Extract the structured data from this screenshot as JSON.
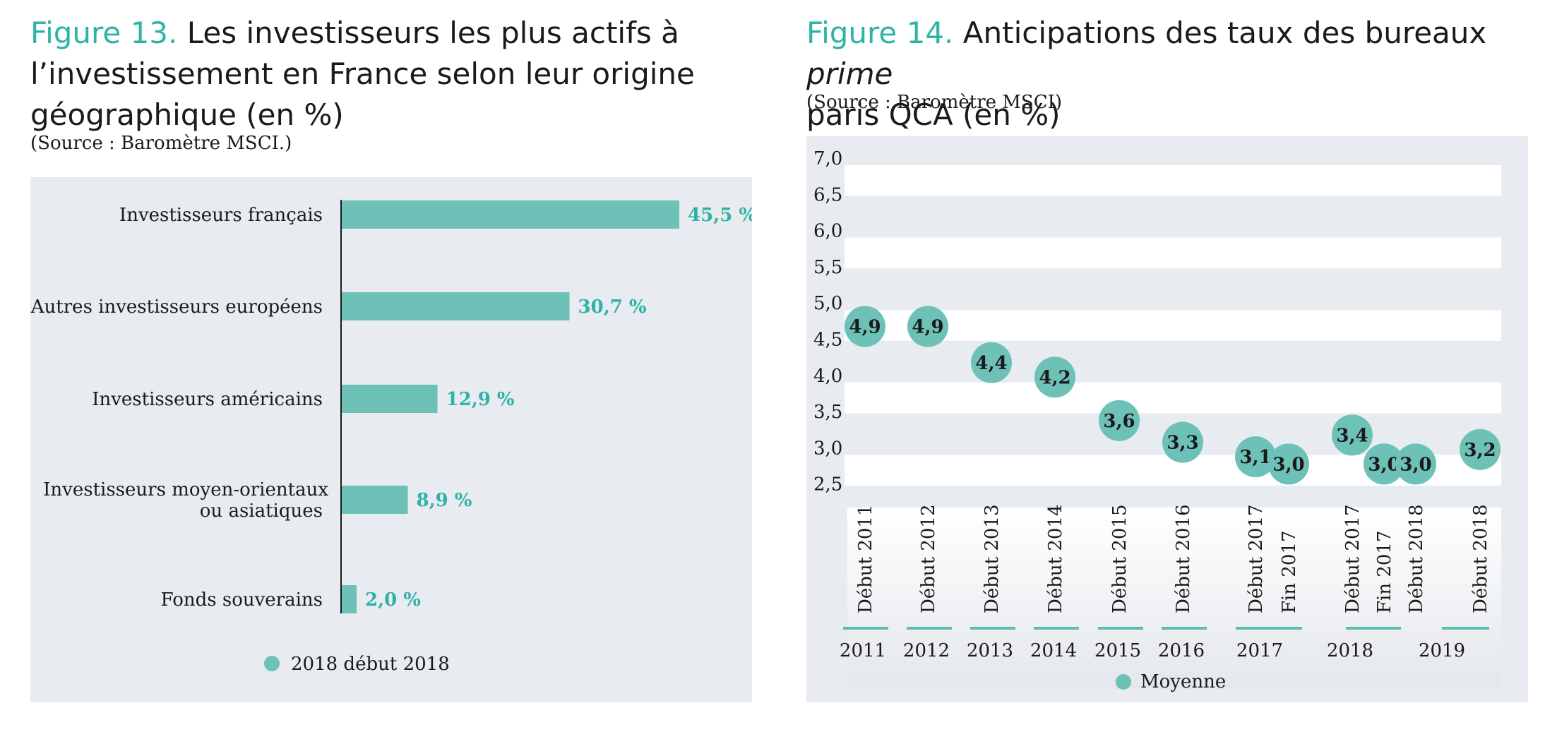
{
  "colors": {
    "accent": "#2fb3a6",
    "bar": "#6dc1b6",
    "panel": "#e8ebef",
    "text": "#1a1a1a"
  },
  "figure13": {
    "label": "Figure 13.",
    "title_line1": "Les investisseurs les plus actifs à",
    "title_line2": "l’investissement en France selon leur origine",
    "title_line3": "géographique (en %)",
    "source": "(Source : Baromètre MSCI.)",
    "legend": "2018 début 2018"
  },
  "figure14": {
    "label": "Figure 14.",
    "title_part1": "Anticipations des taux des bureaux ",
    "title_italic": "prime",
    "title_line2": "paris QCA (en %)",
    "source": "(Source : Baromètre MSCI)",
    "legend": "Moyenne"
  },
  "chart_data": [
    {
      "type": "bar",
      "orientation": "horizontal",
      "categories": [
        [
          "Investisseurs français"
        ],
        [
          "Autres investisseurs européens"
        ],
        [
          "Investisseurs américains"
        ],
        [
          "Investisseurs moyen-orientaux",
          "ou asiatiques"
        ],
        [
          "Fonds souverains"
        ]
      ],
      "values": [
        45.5,
        30.7,
        12.9,
        8.9,
        2.0
      ],
      "value_labels": [
        "45,5 %",
        "30,7 %",
        "12,9 %",
        "8,9 %",
        "2,0 %"
      ],
      "series": [
        {
          "name": "2018 début 2018",
          "values": [
            45.5,
            30.7,
            12.9,
            8.9,
            2.0
          ]
        }
      ],
      "xlim": [
        0,
        50
      ],
      "legend_position": "bottom"
    },
    {
      "type": "scatter",
      "y_ticks": [
        "7,0",
        "6,5",
        "6,0",
        "5,5",
        "5,0",
        "4,5",
        "4,0",
        "3,5",
        "3,0",
        "2,5"
      ],
      "ylim": [
        2.5,
        7.0
      ],
      "points": [
        {
          "label": "Début 2011",
          "year": "2011",
          "value": 4.9,
          "value_label": "4,9"
        },
        {
          "label": "Début 2012",
          "year": "2012",
          "value": 4.9,
          "value_label": "4,9"
        },
        {
          "label": "Début 2013",
          "year": "2013",
          "value": 4.4,
          "value_label": "4,4"
        },
        {
          "label": "Début 2014",
          "year": "2014",
          "value": 4.2,
          "value_label": "4,2"
        },
        {
          "label": "Début 2015",
          "year": "2015",
          "value": 3.6,
          "value_label": "3,6"
        },
        {
          "label": "Début 2016",
          "year": "2016",
          "value": 3.3,
          "value_label": "3,3"
        },
        {
          "label": "Début 2017",
          "year": "2017",
          "value": 3.1,
          "value_label": "3,1"
        },
        {
          "label": "Fin 2017",
          "year": "2017",
          "value": 3.0,
          "value_label": "3,0"
        },
        {
          "label": "Début 2017",
          "year": "2018",
          "value": 3.4,
          "value_label": "3,4"
        },
        {
          "label": "Fin 2017",
          "year": "2018",
          "value": 3.0,
          "value_label": "3,0"
        },
        {
          "label": "Début 2018",
          "year": "2018",
          "value": 3.0,
          "value_label": "3,0"
        },
        {
          "label": "Début 2018",
          "year": "2019",
          "value": 3.2,
          "value_label": "3,2"
        }
      ],
      "years": [
        "2011",
        "2012",
        "2013",
        "2014",
        "2015",
        "2016",
        "2017",
        "2018",
        "2019"
      ],
      "series": [
        {
          "name": "Moyenne"
        }
      ],
      "legend_position": "bottom",
      "grid": "alternating bands"
    }
  ]
}
